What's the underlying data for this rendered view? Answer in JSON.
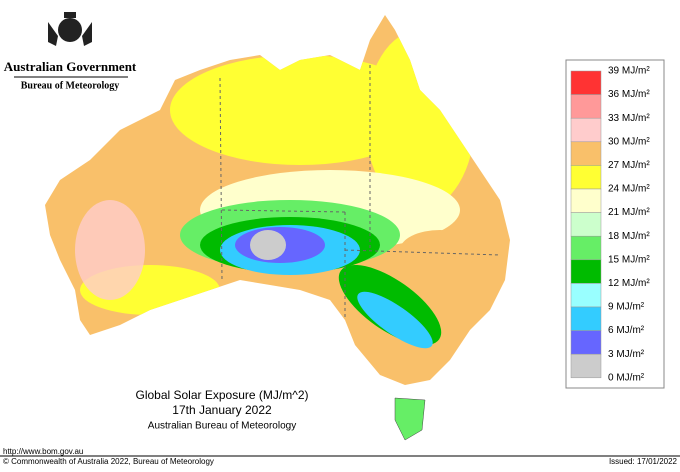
{
  "header": {
    "government": "Australian Government",
    "agency": "Bureau of Meteorology"
  },
  "map": {
    "title": "Global Solar Exposure (MJ/m^2)",
    "date": "17th January 2022",
    "source": "Australian Bureau of Meteorology"
  },
  "legend": {
    "labels": [
      "39 MJ/m²",
      "36 MJ/m²",
      "33 MJ/m²",
      "30 MJ/m²",
      "27 MJ/m²",
      "24 MJ/m²",
      "21 MJ/m²",
      "18 MJ/m²",
      "15 MJ/m²",
      "12 MJ/m²",
      "9 MJ/m²",
      "6 MJ/m²",
      "3 MJ/m²",
      "0 MJ/m²"
    ],
    "colors": [
      "#ff3333",
      "#ff9999",
      "#ffcccc",
      "#f9c06a",
      "#ffff33",
      "#ffffcc",
      "#ccffcc",
      "#66ee66",
      "#00bb00",
      "#99ffff",
      "#33ccff",
      "#6666ff",
      "#cccccc"
    ]
  },
  "footer": {
    "url": "http://www.bom.gov.au",
    "copyright": "© Commonwealth of Australia 2022, Bureau of Meteorology",
    "issued": "Issued: 17/01/2022"
  }
}
